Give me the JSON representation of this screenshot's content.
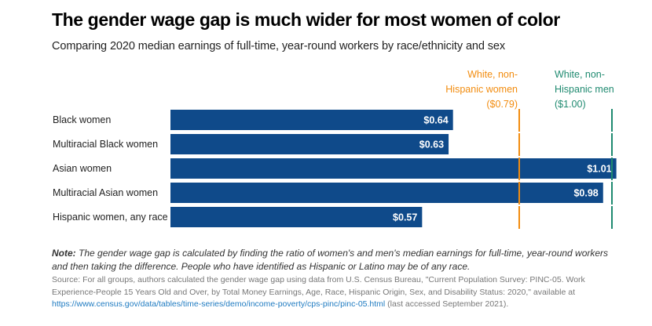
{
  "title": "The gender wage gap is much wider for most women of color",
  "subtitle": "Comparing 2020 median earnings of full-time, year-round workers by race/ethnicity and sex",
  "colors": {
    "bar": "#0f4a8a",
    "white_women_line": "#f28c0f",
    "white_men_line": "#1f8a70",
    "bar_label": "#ffffff"
  },
  "reference_lines": {
    "women": {
      "line1": "White, non-",
      "line2": "Hispanic women",
      "line3": "($0.79)"
    },
    "men": {
      "line1": "White, non-",
      "line2": "Hispanic men",
      "line3": "($1.00)"
    }
  },
  "chart_data": {
    "type": "bar",
    "orientation": "horizontal",
    "title": "The gender wage gap is much wider for most women of color",
    "subtitle": "Comparing 2020 median earnings of full-time, year-round workers by race/ethnicity and sex",
    "xlabel": "",
    "ylabel": "",
    "xlim": [
      0,
      1.01
    ],
    "grid": false,
    "categories": [
      "Black women",
      "Multiracial Black women",
      "Asian women",
      "Multiracial Asian women",
      "Hispanic women, any race"
    ],
    "values": [
      0.64,
      0.63,
      1.01,
      0.98,
      0.57
    ],
    "data_labels": [
      "$0.64",
      "$0.63",
      "$1.01",
      "$0.98",
      "$0.57"
    ],
    "reference_lines": [
      {
        "label": "White, non-Hispanic women ($0.79)",
        "value": 0.79,
        "color": "#f28c0f"
      },
      {
        "label": "White, non-Hispanic men ($1.00)",
        "value": 1.0,
        "color": "#1f8a70"
      }
    ]
  },
  "note": {
    "label": "Note:",
    "text": " The gender wage gap is calculated by finding the ratio of women's and men's median earnings for full-time, year-round workers and then taking the difference. People who have identified as Hispanic or Latino may be of any race."
  },
  "source": {
    "text": "Source: For all groups, authors calculated the gender wage gap using data from U.S. Census Bureau, \"Current Population Survey: PINC-05. Work Experience-People 15 Years Old and Over, by Total Money Earnings, Age, Race, Hispanic Origin, Sex, and Disability Status: 2020,\" available at ",
    "link": "https://www.census.gov/data/tables/time-series/demo/income-poverty/cps-pinc/pinc-05.html",
    "suffix": " (last accessed September 2021)."
  }
}
